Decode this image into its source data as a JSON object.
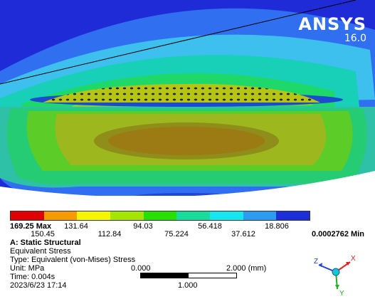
{
  "logo": {
    "brand": "ANSYS",
    "version": "16.0"
  },
  "legend": {
    "colors": [
      "#e00000",
      "#f59a00",
      "#f6f500",
      "#a4e600",
      "#28e000",
      "#17dc9c",
      "#16e6f0",
      "#2b9cf0",
      "#1d2fd8"
    ],
    "max_label": "169.25 Max",
    "min_label": "0.0002762 Min",
    "top_values": [
      "131.64",
      "94.03",
      "56.418",
      "18.806"
    ],
    "bottom_values": [
      "150.45",
      "112.84",
      "75.224",
      "37.612"
    ]
  },
  "info": {
    "title": "A: Static Structural",
    "result": "Equivalent Stress",
    "type": "Type: Equivalent (von-Mises) Stress",
    "unit": "Unit: MPa",
    "time": "Time: 0.004s",
    "date": "2023/6/23 17:14"
  },
  "scale": {
    "left": "0.000",
    "right": "2.000 (mm)",
    "mid": "1.000"
  },
  "triad": {
    "x": "X",
    "y": "Y",
    "z": "Z"
  }
}
